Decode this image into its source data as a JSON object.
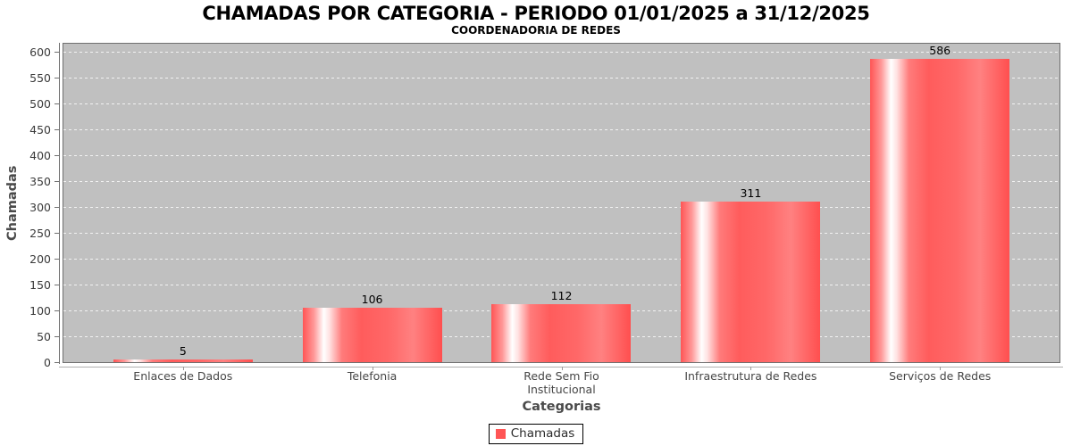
{
  "chart_data": {
    "type": "bar",
    "title": "CHAMADAS POR CATEGORIA - PERIODO 01/01/2025 a 31/12/2025",
    "subtitle": "COORDENADORIA DE REDES",
    "xlabel": "Categorias",
    "ylabel": "Chamadas",
    "series_name": "Chamadas",
    "categories": [
      "Enlaces de Dados",
      "Telefonia",
      "Rede Sem Fio\nInstitucional",
      "Infraestrutura de Redes",
      "Serviços de Redes"
    ],
    "values": [
      5,
      106,
      112,
      311,
      586
    ],
    "value_labels": [
      "5",
      "106",
      "112",
      "311",
      "586"
    ],
    "ylim": [
      0,
      600
    ],
    "ytick_step": 50,
    "ytick_labels": [
      "0",
      "50",
      "100",
      "150",
      "200",
      "250",
      "300",
      "350",
      "400",
      "450",
      "500",
      "550",
      "600"
    ],
    "grid": "horizontal white dashed lines on gray plot background",
    "legend_position": "bottom-center",
    "colors": {
      "bar_base": "#ff5555",
      "bar_highlight": "#ffffff",
      "plot_background": "#c0c0c0",
      "gridline": "#f2f2f2",
      "legend_swatch": "#ff5555",
      "title_text": "#000000",
      "axis_text": "#464646"
    }
  }
}
